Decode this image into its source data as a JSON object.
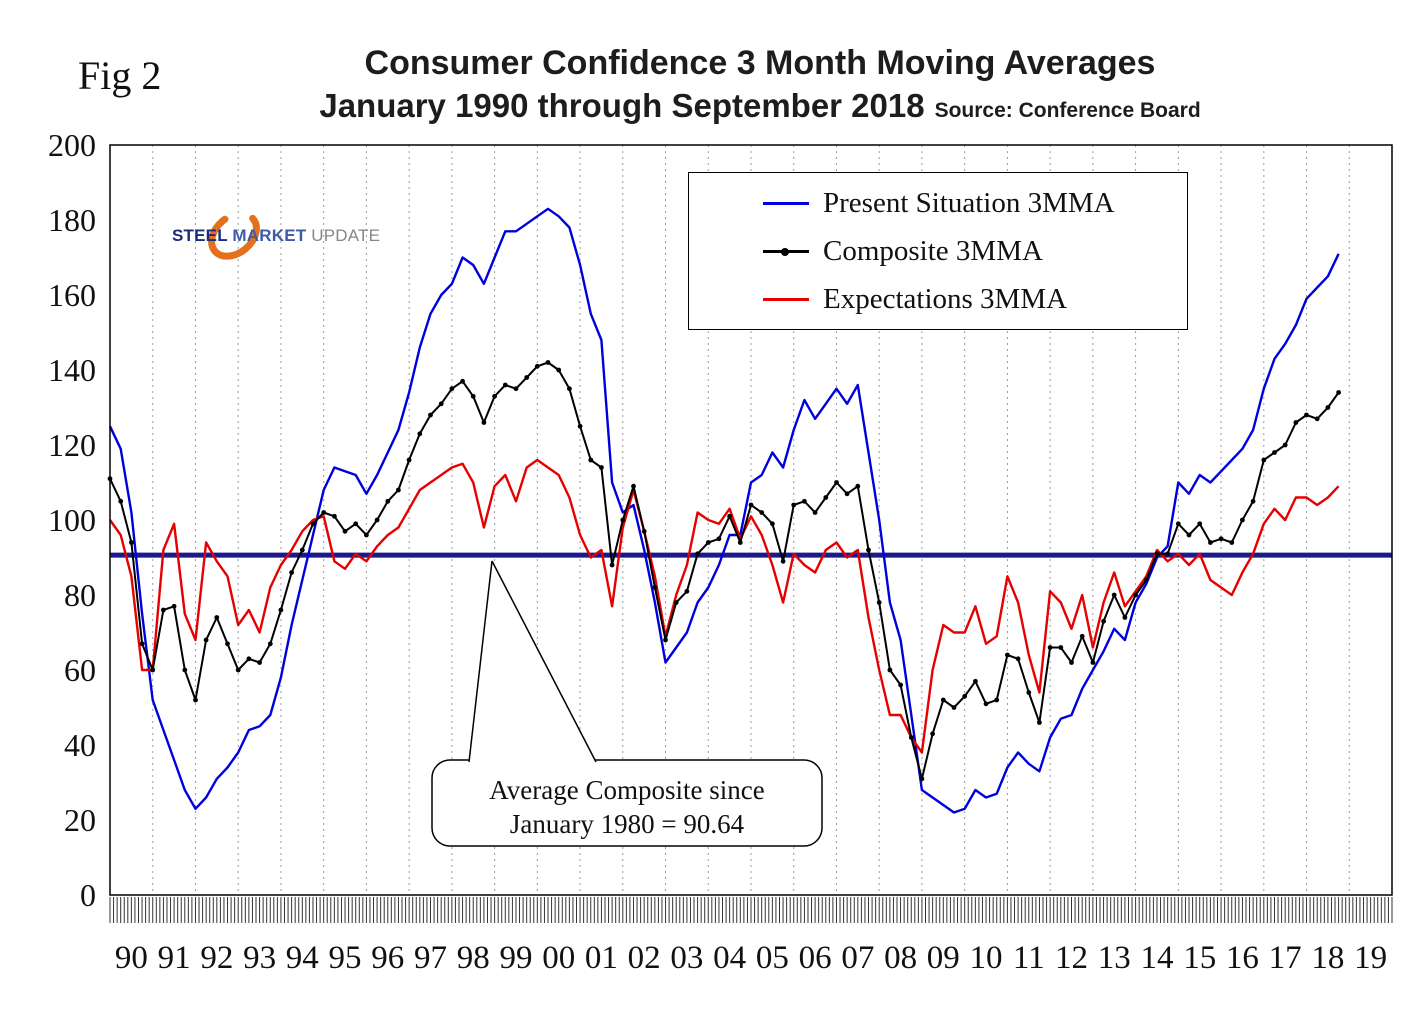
{
  "fig_label": "Fig 2",
  "title_line1": "Consumer Confidence 3 Month Moving Averages",
  "title_line2": "January 1990 through September 2018",
  "source": "Source: Conference Board",
  "logo": {
    "steel": "STEEL",
    "market": "MARKET",
    "update": "UPDATE",
    "ring_color": "#e4701e"
  },
  "legend": [
    {
      "label": "Present Situation 3MMA",
      "color": "#0000dd",
      "marker": false
    },
    {
      "label": "Composite 3MMA",
      "color": "#000000",
      "marker": true
    },
    {
      "label": "Expectations 3MMA",
      "color": "#e60000",
      "marker": false
    }
  ],
  "annotation": {
    "line1": "Average Composite since",
    "line2": "January 1980 = 90.64",
    "value": 90.64,
    "line_color": "#1a1a8c"
  },
  "chart_data": {
    "type": "line",
    "title": "Consumer Confidence 3 Month Moving Averages",
    "subtitle": "January 1990 through September 2018",
    "source": "Conference Board",
    "x_start": 1990,
    "x_step": 0.25,
    "x_axis_range": [
      1990,
      2020
    ],
    "ylim": [
      0,
      200
    ],
    "grid": "vertical-dotted-per-year",
    "legend_position": "top-right-box",
    "y_ticks": [
      0,
      20,
      40,
      60,
      80,
      100,
      120,
      140,
      160,
      180,
      200
    ],
    "x_tick_labels": [
      "90",
      "91",
      "92",
      "93",
      "94",
      "95",
      "96",
      "97",
      "98",
      "99",
      "00",
      "01",
      "02",
      "03",
      "04",
      "05",
      "06",
      "07",
      "08",
      "09",
      "10",
      "11",
      "12",
      "13",
      "14",
      "15",
      "16",
      "17",
      "18",
      "19"
    ],
    "reference_line": {
      "value": 90.64,
      "label": "Average Composite since January 1980 = 90.64",
      "color": "#1a1a8c"
    },
    "series": [
      {
        "name": "Present Situation 3MMA",
        "color": "#0000dd",
        "marker": null,
        "values": [
          125,
          119,
          102,
          75,
          52,
          44,
          36,
          28,
          23,
          26,
          31,
          34,
          38,
          44,
          45,
          48,
          58,
          72,
          84,
          96,
          108,
          114,
          113,
          112,
          107,
          112,
          118,
          124,
          134,
          146,
          155,
          160,
          163,
          170,
          168,
          163,
          170,
          177,
          177,
          179,
          181,
          183,
          181,
          178,
          168,
          155,
          148,
          110,
          102,
          104,
          92,
          78,
          62,
          66,
          70,
          78,
          82,
          88,
          96,
          96,
          110,
          112,
          118,
          114,
          124,
          132,
          127,
          131,
          135,
          131,
          136,
          118,
          100,
          78,
          68,
          48,
          28,
          26,
          24,
          22,
          23,
          28,
          26,
          27,
          34,
          38,
          35,
          33,
          42,
          47,
          48,
          55,
          60,
          65,
          71,
          68,
          78,
          83,
          90,
          93,
          110,
          107,
          112,
          110,
          113,
          116,
          119,
          124,
          135,
          143,
          147,
          152,
          159,
          162,
          165,
          171
        ]
      },
      {
        "name": "Composite 3MMA",
        "color": "#000000",
        "marker": "dot",
        "values": [
          111,
          105,
          94,
          67,
          60,
          76,
          77,
          60,
          52,
          68,
          74,
          67,
          60,
          63,
          62,
          67,
          76,
          86,
          92,
          99,
          102,
          101,
          97,
          99,
          96,
          100,
          105,
          108,
          116,
          123,
          128,
          131,
          135,
          137,
          133,
          126,
          133,
          136,
          135,
          138,
          141,
          142,
          140,
          135,
          125,
          116,
          114,
          88,
          100,
          109,
          97,
          82,
          68,
          78,
          81,
          91,
          94,
          95,
          101,
          94,
          104,
          102,
          99,
          89,
          104,
          105,
          102,
          106,
          110,
          107,
          109,
          92,
          78,
          60,
          56,
          42,
          31,
          43,
          52,
          50,
          53,
          57,
          51,
          52,
          64,
          63,
          54,
          46,
          66,
          66,
          62,
          69,
          62,
          73,
          80,
          74,
          80,
          84,
          91,
          91,
          99,
          96,
          99,
          94,
          95,
          94,
          100,
          105,
          116,
          118,
          120,
          126,
          128,
          127,
          130,
          134
        ]
      },
      {
        "name": "Expectations 3MMA",
        "color": "#e60000",
        "marker": null,
        "values": [
          100,
          96,
          85,
          60,
          60,
          92,
          99,
          75,
          68,
          94,
          89,
          85,
          72,
          76,
          70,
          82,
          88,
          92,
          97,
          100,
          101,
          89,
          87,
          91,
          89,
          93,
          96,
          98,
          103,
          108,
          110,
          112,
          114,
          115,
          110,
          98,
          109,
          112,
          105,
          114,
          116,
          114,
          112,
          106,
          96,
          90,
          92,
          77,
          98,
          108,
          97,
          85,
          69,
          80,
          88,
          102,
          100,
          99,
          103,
          95,
          101,
          96,
          88,
          78,
          91,
          88,
          86,
          92,
          94,
          90,
          92,
          74,
          60,
          48,
          48,
          42,
          38,
          60,
          72,
          70,
          70,
          77,
          67,
          69,
          85,
          78,
          64,
          54,
          81,
          78,
          71,
          80,
          66,
          78,
          86,
          77,
          81,
          85,
          92,
          89,
          91,
          88,
          91,
          84,
          82,
          80,
          86,
          91,
          99,
          103,
          100,
          106,
          106,
          104,
          106,
          109
        ]
      }
    ]
  }
}
